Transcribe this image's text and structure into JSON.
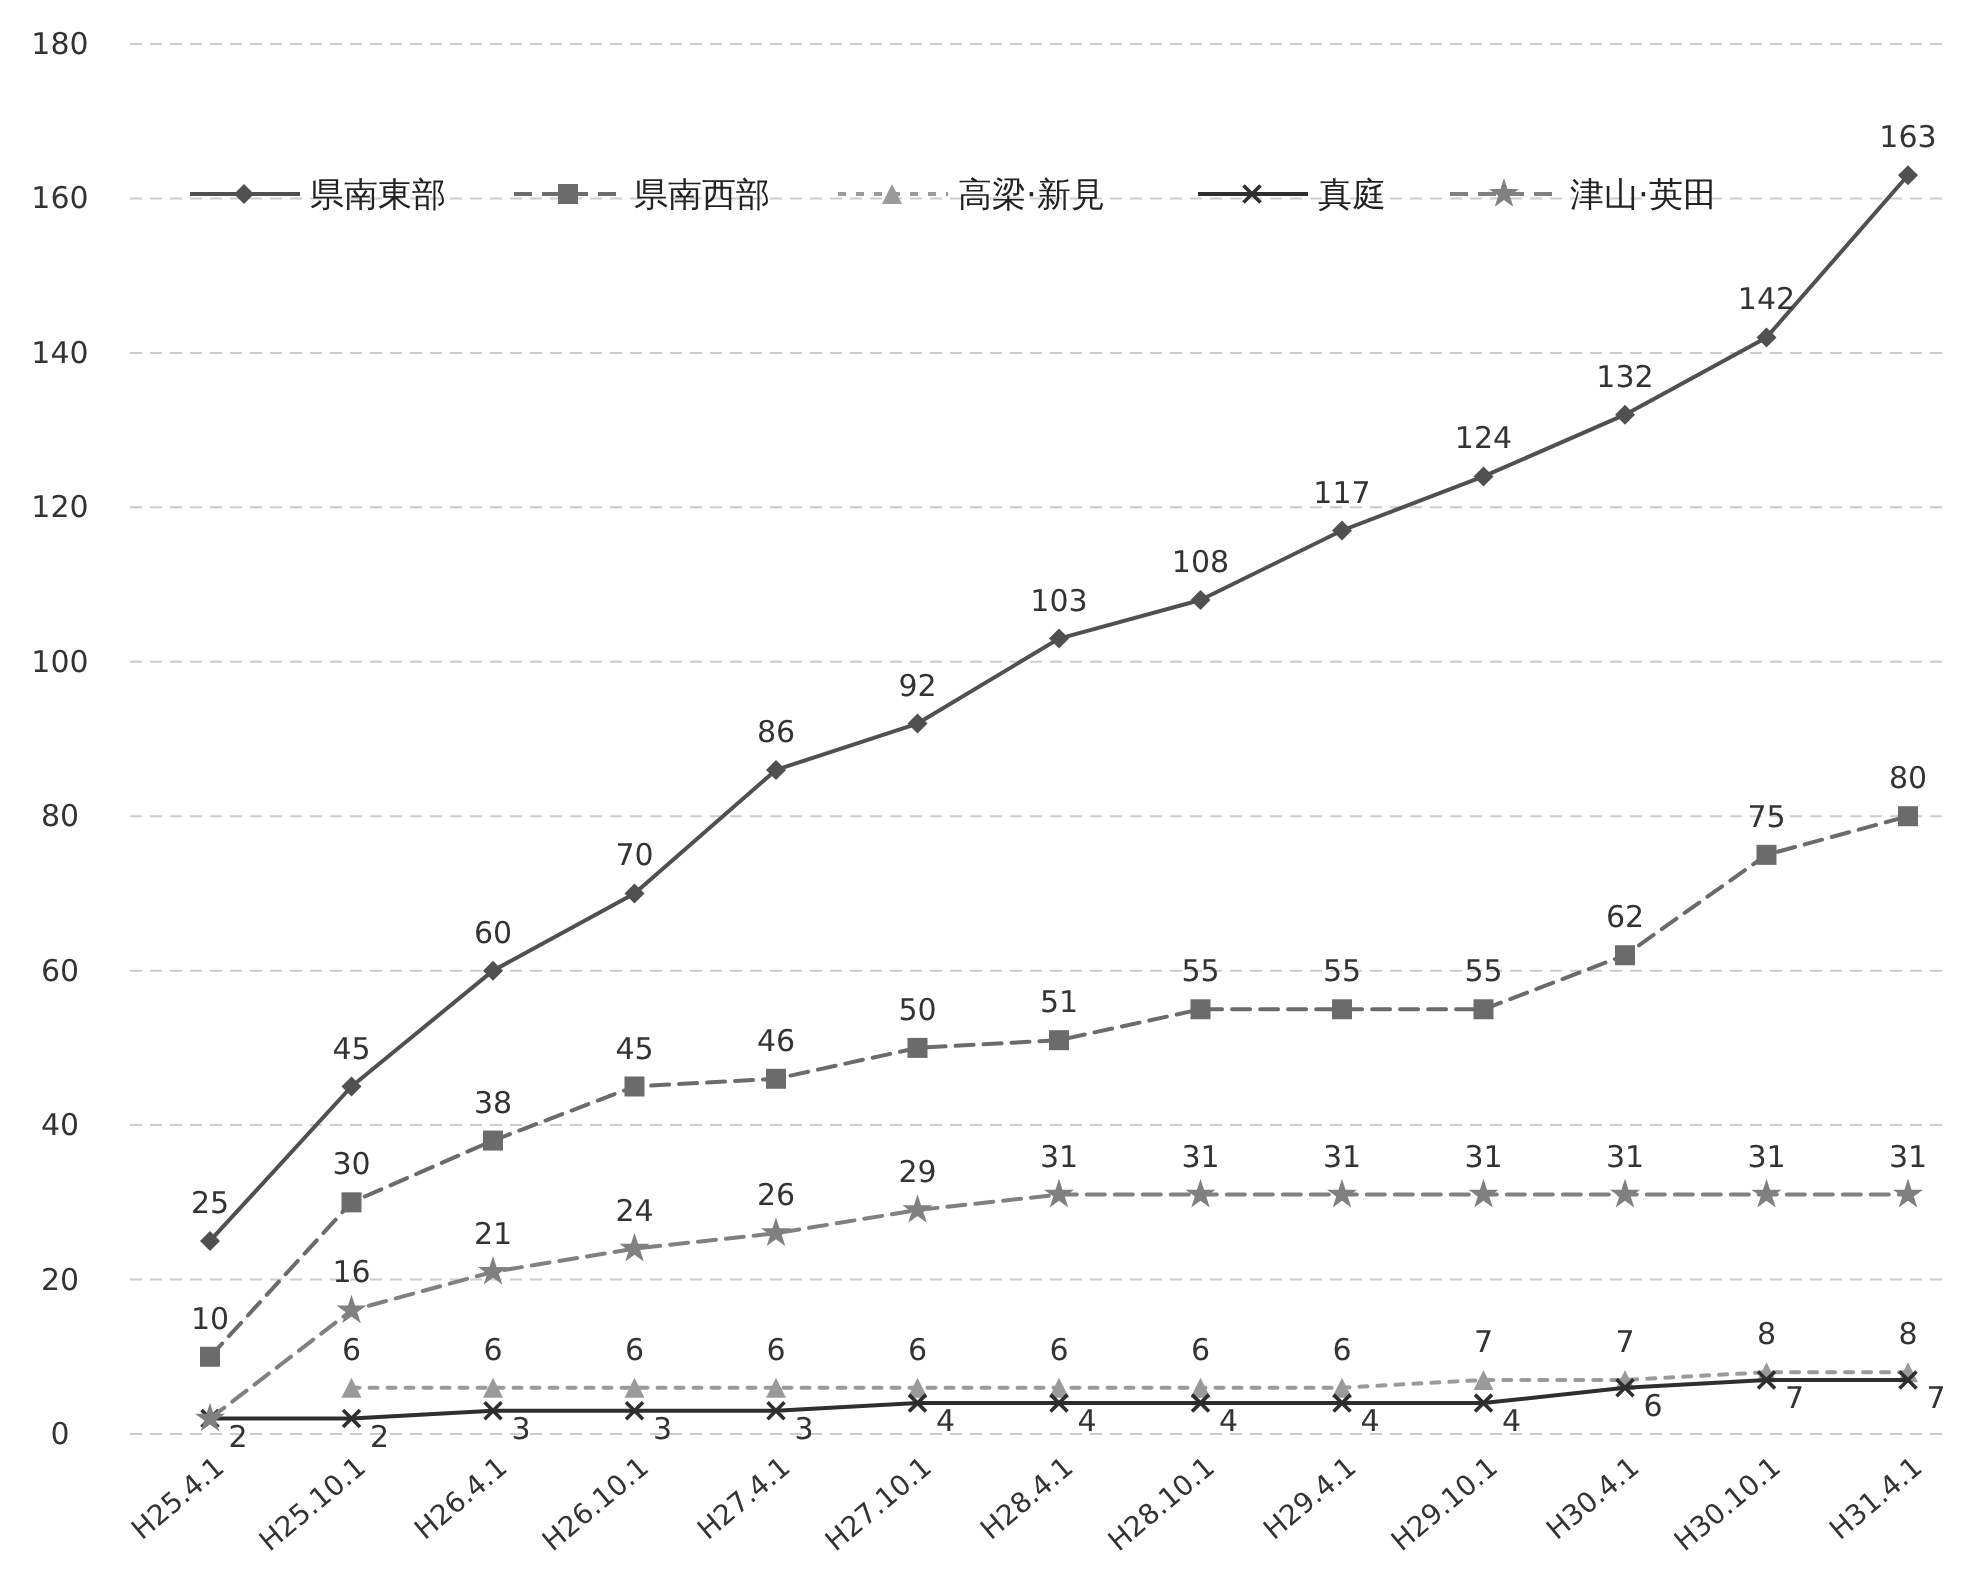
{
  "chart_data": {
    "type": "line",
    "categories": [
      "H25.4.1",
      "H25.10.1",
      "H26.4.1",
      "H26.10.1",
      "H27.4.1",
      "H27.10.1",
      "H28.4.1",
      "H28.10.1",
      "H29.4.1",
      "H29.10.1",
      "H30.4.1",
      "H30.10.1",
      "H31.4.1"
    ],
    "ylim": [
      0,
      180
    ],
    "yticks": [
      0,
      20,
      40,
      60,
      80,
      100,
      120,
      140,
      160,
      180
    ],
    "grid": "y",
    "legend": "top left",
    "series": [
      {
        "name": "県南東部",
        "color": "#505050",
        "marker": "diamond",
        "line_style": "solid",
        "values": [
          25,
          45,
          60,
          70,
          86,
          92,
          103,
          108,
          117,
          124,
          132,
          142,
          163
        ],
        "value_labels": [
          "25",
          "45",
          "60",
          "70",
          "86",
          "92",
          "103",
          "108",
          "117",
          "124",
          "132",
          "142",
          "163"
        ]
      },
      {
        "name": "県南西部",
        "color": "#6b6b6b",
        "marker": "square",
        "line_style": "dashed",
        "values": [
          10,
          30,
          38,
          45,
          46,
          50,
          51,
          55,
          55,
          55,
          62,
          75,
          80
        ],
        "value_labels": [
          "10",
          "30",
          "38",
          "45",
          "46",
          "50",
          "51",
          "55",
          "55",
          "55",
          "62",
          "75",
          "80"
        ]
      },
      {
        "name": "高梁·新見",
        "color": "#9a9a9a",
        "marker": "triangle",
        "line_style": "dotted",
        "values": [
          null,
          6,
          6,
          6,
          6,
          6,
          6,
          6,
          6,
          7,
          7,
          8,
          8
        ],
        "value_labels": [
          null,
          "6",
          "6",
          "6",
          "6",
          "6",
          "6",
          "6",
          "6",
          "7",
          "7",
          "8",
          "8"
        ]
      },
      {
        "name": "真庭",
        "color": "#2e2e2e",
        "marker": "cross",
        "line_style": "solid",
        "values": [
          2,
          2,
          3,
          3,
          3,
          4,
          4,
          4,
          4,
          4,
          6,
          7,
          7
        ],
        "value_labels": [
          "2",
          "2",
          "3",
          "3",
          "3",
          "4",
          "4",
          "4",
          "4",
          "4",
          "6",
          "7",
          "7"
        ]
      },
      {
        "name": "津山·英田",
        "color": "#808080",
        "marker": "star",
        "line_style": "dashed",
        "values": [
          2,
          16,
          21,
          24,
          26,
          29,
          31,
          31,
          31,
          31,
          31,
          31,
          31
        ],
        "value_labels": [
          null,
          "16",
          "21",
          "24",
          "26",
          "29",
          "31",
          "31",
          "31",
          "31",
          "31",
          "31",
          "31"
        ]
      }
    ]
  }
}
